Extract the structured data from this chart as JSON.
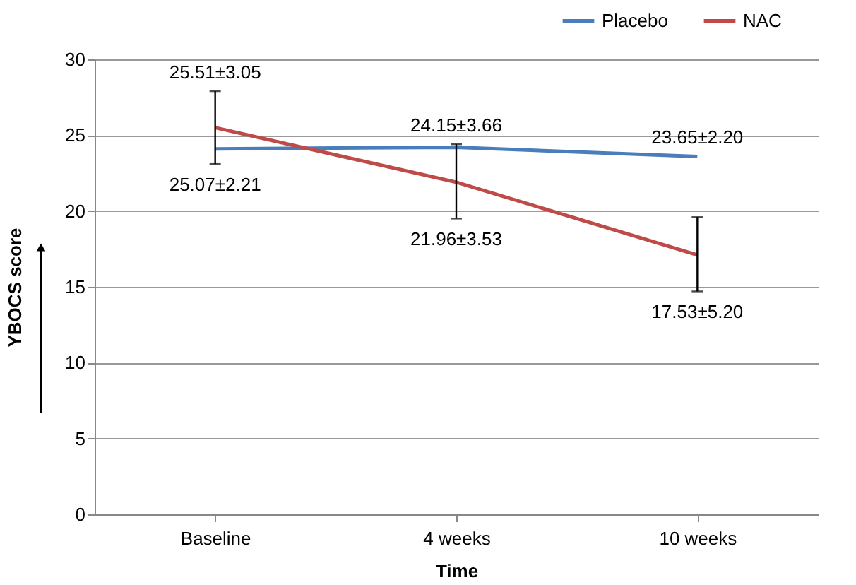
{
  "chart_data": {
    "type": "line",
    "xlabel": "Time",
    "ylabel": "YBOCS score",
    "categories": [
      "Baseline",
      "4 weeks",
      "10 weeks"
    ],
    "series": [
      {
        "name": "Placebo",
        "color": "#4a7ebb",
        "values": [
          24.1,
          24.2,
          23.6
        ],
        "line_style": "solid"
      },
      {
        "name": "NAC",
        "color": "#be4b48",
        "values": [
          25.5,
          21.9,
          17.1
        ],
        "errors": [
          [
            23.1,
            27.9
          ],
          [
            19.5,
            24.4
          ],
          [
            14.7,
            19.6
          ]
        ],
        "line_style": "solid"
      }
    ],
    "ylim": [
      0,
      30
    ],
    "yticks": [
      0,
      5,
      10,
      15,
      20,
      25,
      30
    ],
    "grid": "y",
    "legend": "top right",
    "marker": "none",
    "annotations": [
      "25.51±3.05",
      "25.07±2.21",
      "24.15±3.66",
      "21.96±3.53",
      "23.65±2.20",
      "17.53±5.20"
    ]
  }
}
